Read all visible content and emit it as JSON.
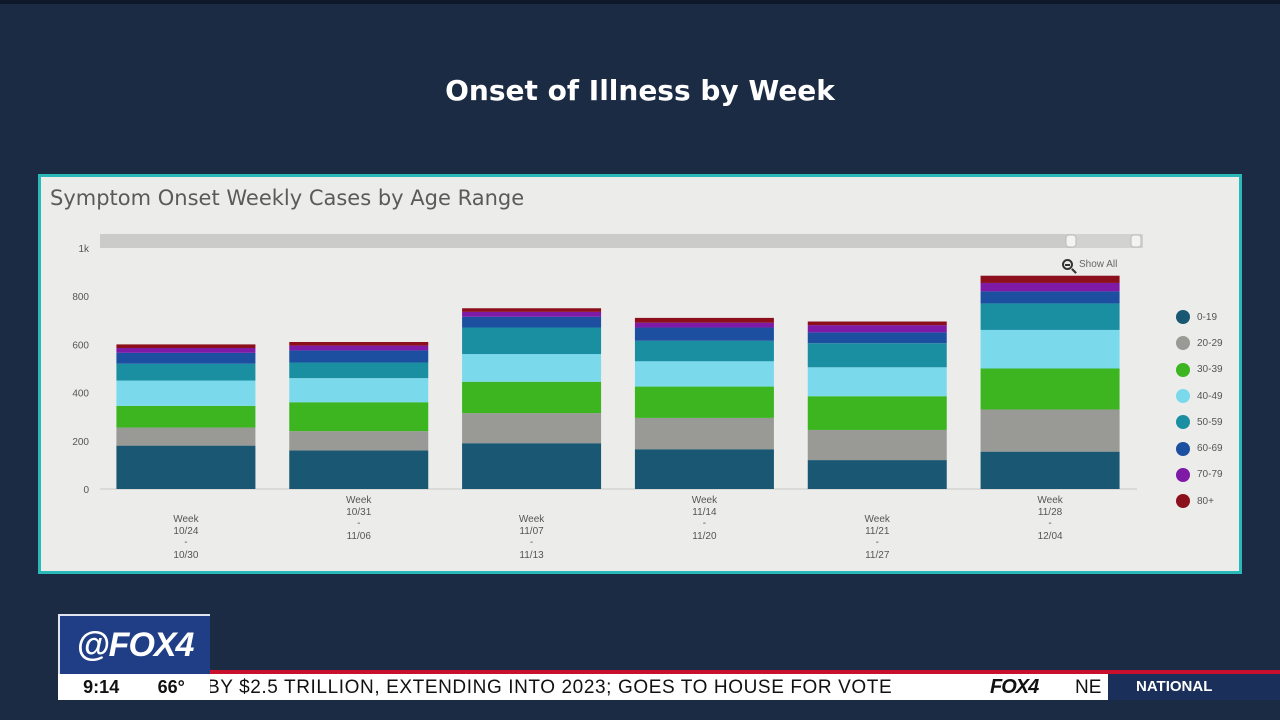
{
  "slide": {
    "title": "Onset of Illness by Week"
  },
  "show_all": {
    "label": "Show All"
  },
  "chart_data": {
    "type": "bar",
    "stacked": true,
    "title": "Symptom Onset Weekly Cases by Age Range",
    "xlabel": "",
    "ylabel": "",
    "ylim": [
      0,
      1000
    ],
    "yticks": [
      0,
      200,
      400,
      600,
      800,
      1000
    ],
    "ytick_labels": [
      "0",
      "200",
      "400",
      "600",
      "800",
      "1k"
    ],
    "categories": [
      [
        "Week",
        "10/24",
        "-",
        "10/30"
      ],
      [
        "Week",
        "10/31",
        "-",
        "11/06"
      ],
      [
        "Week",
        "11/07",
        "-",
        "11/13"
      ],
      [
        "Week",
        "11/14",
        "-",
        "11/20"
      ],
      [
        "Week",
        "11/21",
        "-",
        "11/27"
      ],
      [
        "Week",
        "11/28",
        "-",
        "12/04"
      ]
    ],
    "legend_position": "right",
    "series": [
      {
        "name": "0-19",
        "color": "#1a5772",
        "values": [
          180,
          160,
          190,
          165,
          120,
          155
        ]
      },
      {
        "name": "20-29",
        "color": "#999a96",
        "values": [
          75,
          80,
          125,
          130,
          125,
          175
        ]
      },
      {
        "name": "30-39",
        "color": "#3cb521",
        "values": [
          90,
          120,
          130,
          130,
          140,
          170
        ]
      },
      {
        "name": "40-49",
        "color": "#7ad9ea",
        "values": [
          105,
          100,
          115,
          105,
          120,
          160
        ]
      },
      {
        "name": "50-59",
        "color": "#1b8fa2",
        "values": [
          70,
          65,
          110,
          85,
          100,
          110
        ]
      },
      {
        "name": "60-69",
        "color": "#1d4fa1",
        "values": [
          45,
          50,
          45,
          55,
          45,
          50
        ]
      },
      {
        "name": "70-79",
        "color": "#7e1aa5",
        "values": [
          20,
          20,
          20,
          20,
          30,
          35
        ]
      },
      {
        "name": "80+",
        "color": "#8c0f1c",
        "values": [
          15,
          15,
          15,
          20,
          15,
          30
        ]
      }
    ]
  },
  "lower_third": {
    "logo": "@FOX4",
    "time": "9:14",
    "temperature": "66°",
    "ticker": "BY $2.5 TRILLION, EXTENDING INTO 2023; GOES TO HOUSE FOR VOTE",
    "ticker_logo": "FOX4",
    "ticker_tail": "NE",
    "section": "NATIONAL"
  }
}
